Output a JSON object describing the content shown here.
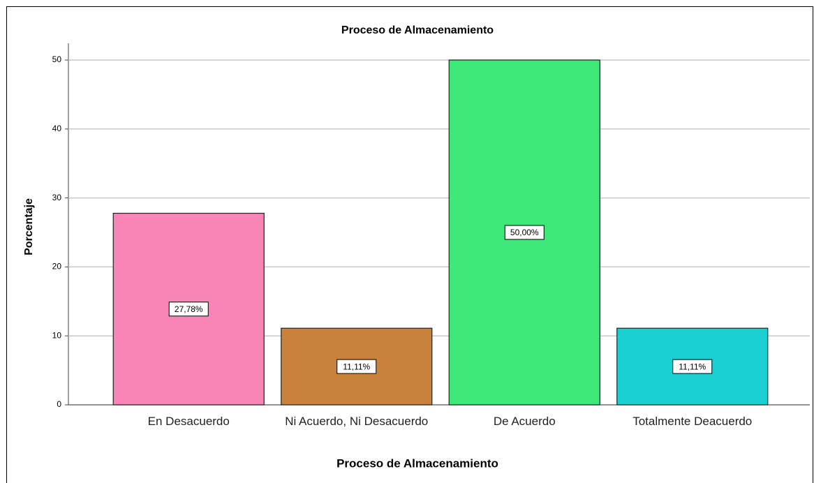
{
  "chart_data": {
    "type": "bar",
    "title": "Proceso de Almacenamiento",
    "x_label": "Proceso de Almacenamiento",
    "y_label": "Porcentaje",
    "categories": [
      "En Desacuerdo",
      "Ni Acuerdo, Ni Desacuerdo",
      "De Acuerdo",
      "Totalmente Deacuerdo"
    ],
    "values": [
      27.78,
      11.11,
      50,
      11.11
    ],
    "value_labels": [
      "27,78%",
      "11,11%",
      "50,00%",
      "11,11%"
    ],
    "colors": [
      "#f984b6",
      "#c8823b",
      "#3de878",
      "#1acfcf"
    ],
    "ylim": [
      0,
      50
    ],
    "yticks": [
      0,
      10,
      20,
      30,
      40,
      50
    ],
    "grid": true
  }
}
